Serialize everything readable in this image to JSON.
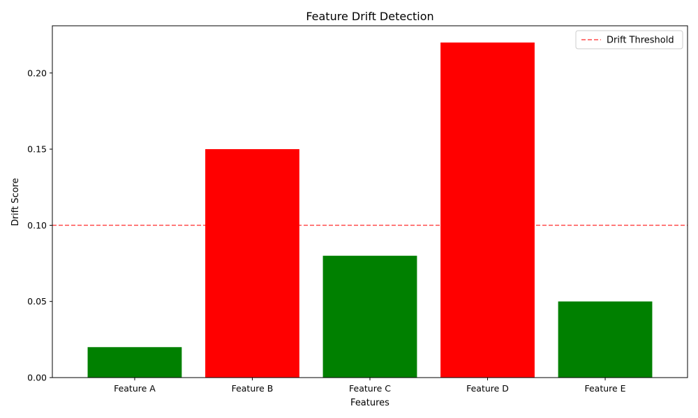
{
  "chart_data": {
    "type": "bar",
    "title": "Feature Drift Detection",
    "xlabel": "Features",
    "ylabel": "Drift Score",
    "categories": [
      "Feature A",
      "Feature B",
      "Feature C",
      "Feature D",
      "Feature E"
    ],
    "values": [
      0.02,
      0.15,
      0.08,
      0.22,
      0.05
    ],
    "bar_colors": [
      "#008000",
      "#ff0000",
      "#008000",
      "#ff0000",
      "#008000"
    ],
    "ylim": [
      0,
      0.231
    ],
    "yticks": [
      0.0,
      0.05,
      0.1,
      0.15,
      0.2
    ],
    "ytick_labels": [
      "0.00",
      "0.05",
      "0.10",
      "0.15",
      "0.20"
    ],
    "threshold": {
      "value": 0.1,
      "label": "Drift Threshold",
      "color": "#ff0000",
      "style": "dashed",
      "alpha": 0.7
    },
    "legend": {
      "placement": "top-right",
      "entries": [
        "Drift Threshold"
      ]
    },
    "grid": false
  }
}
